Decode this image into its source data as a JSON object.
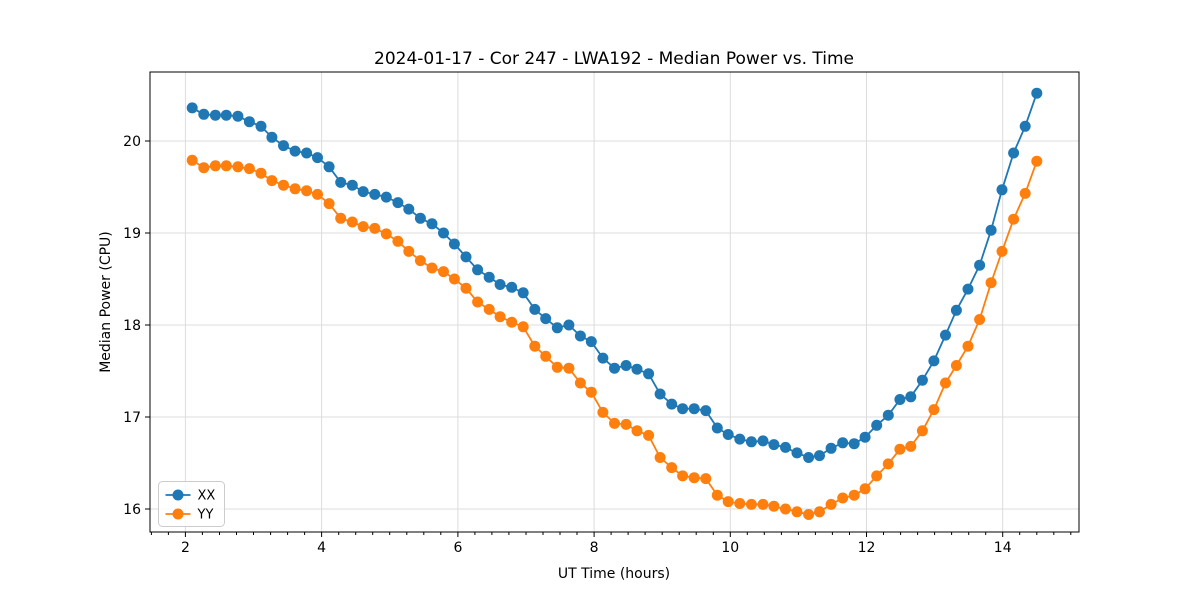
{
  "figure": {
    "title": "2024-01-17 - Cor 247 - LWA192 - Median Power vs. Time",
    "xlabel": "UT Time (hours)",
    "ylabel": "Median Power (CPU)"
  },
  "chart_data": {
    "type": "line",
    "title": "2024-01-17 - Cor 247 - LWA192 - Median Power vs. Time",
    "xlabel": "UT Time (hours)",
    "ylabel": "Median Power (CPU)",
    "grid": true,
    "legend_position": "lower left",
    "xlim": [
      1.48,
      15.12
    ],
    "ylim": [
      15.75,
      20.75
    ],
    "x_ticks": [
      2,
      4,
      6,
      8,
      10,
      12,
      14
    ],
    "x_minor_tick_step": 0.25,
    "y_ticks": [
      16,
      17,
      18,
      19,
      20
    ],
    "grid_color": "#dcdcdc",
    "spine_color": "#000000",
    "tick_color": "#000000",
    "legend_border_color": "#cccccc",
    "marker": "circle",
    "marker_radius": 5.5,
    "line_width": 1.8,
    "x": [
      2.1,
      2.27,
      2.44,
      2.6,
      2.77,
      2.94,
      3.11,
      3.27,
      3.44,
      3.61,
      3.78,
      3.94,
      4.11,
      4.28,
      4.45,
      4.61,
      4.78,
      4.95,
      5.12,
      5.28,
      5.45,
      5.62,
      5.79,
      5.95,
      6.12,
      6.29,
      6.46,
      6.62,
      6.79,
      6.96,
      7.13,
      7.29,
      7.46,
      7.63,
      7.8,
      7.96,
      8.13,
      8.3,
      8.47,
      8.63,
      8.8,
      8.97,
      9.14,
      9.3,
      9.47,
      9.64,
      9.81,
      9.97,
      10.14,
      10.31,
      10.48,
      10.64,
      10.81,
      10.98,
      11.15,
      11.31,
      11.48,
      11.65,
      11.82,
      11.98,
      12.15,
      12.32,
      12.49,
      12.65,
      12.82,
      12.99,
      13.16,
      13.32,
      13.49,
      13.66,
      13.83,
      13.99,
      14.16,
      14.33,
      14.5
    ],
    "series": [
      {
        "name": "XX",
        "color": "#1f77b4",
        "values": [
          20.36,
          20.29,
          20.28,
          20.28,
          20.27,
          20.21,
          20.16,
          20.04,
          19.95,
          19.89,
          19.87,
          19.82,
          19.72,
          19.55,
          19.52,
          19.45,
          19.42,
          19.39,
          19.33,
          19.26,
          19.16,
          19.1,
          19.0,
          18.88,
          18.74,
          18.6,
          18.52,
          18.44,
          18.41,
          18.35,
          18.17,
          18.07,
          17.97,
          18.0,
          17.88,
          17.82,
          17.64,
          17.53,
          17.56,
          17.52,
          17.47,
          17.25,
          17.14,
          17.09,
          17.09,
          17.07,
          16.88,
          16.81,
          16.76,
          16.73,
          16.74,
          16.7,
          16.67,
          16.61,
          16.56,
          16.58,
          16.66,
          16.72,
          16.71,
          16.78,
          16.91,
          17.02,
          17.19,
          17.22,
          17.4,
          17.61,
          17.89,
          18.16,
          18.39,
          18.65,
          19.03,
          19.47,
          19.87,
          20.16,
          20.52
        ]
      },
      {
        "name": "YY",
        "color": "#ff7f0e",
        "values": [
          19.79,
          19.71,
          19.73,
          19.73,
          19.72,
          19.7,
          19.65,
          19.57,
          19.52,
          19.48,
          19.46,
          19.42,
          19.32,
          19.16,
          19.12,
          19.07,
          19.05,
          18.99,
          18.91,
          18.8,
          18.7,
          18.62,
          18.58,
          18.5,
          18.4,
          18.25,
          18.17,
          18.09,
          18.03,
          17.98,
          17.77,
          17.66,
          17.54,
          17.53,
          17.37,
          17.27,
          17.05,
          16.93,
          16.92,
          16.85,
          16.8,
          16.56,
          16.45,
          16.36,
          16.34,
          16.33,
          16.15,
          16.08,
          16.06,
          16.05,
          16.05,
          16.03,
          16.0,
          15.97,
          15.94,
          15.97,
          16.05,
          16.12,
          16.15,
          16.22,
          16.36,
          16.49,
          16.65,
          16.68,
          16.85,
          17.08,
          17.37,
          17.56,
          17.77,
          18.06,
          18.46,
          18.8,
          19.15,
          19.43,
          19.78
        ]
      }
    ]
  }
}
